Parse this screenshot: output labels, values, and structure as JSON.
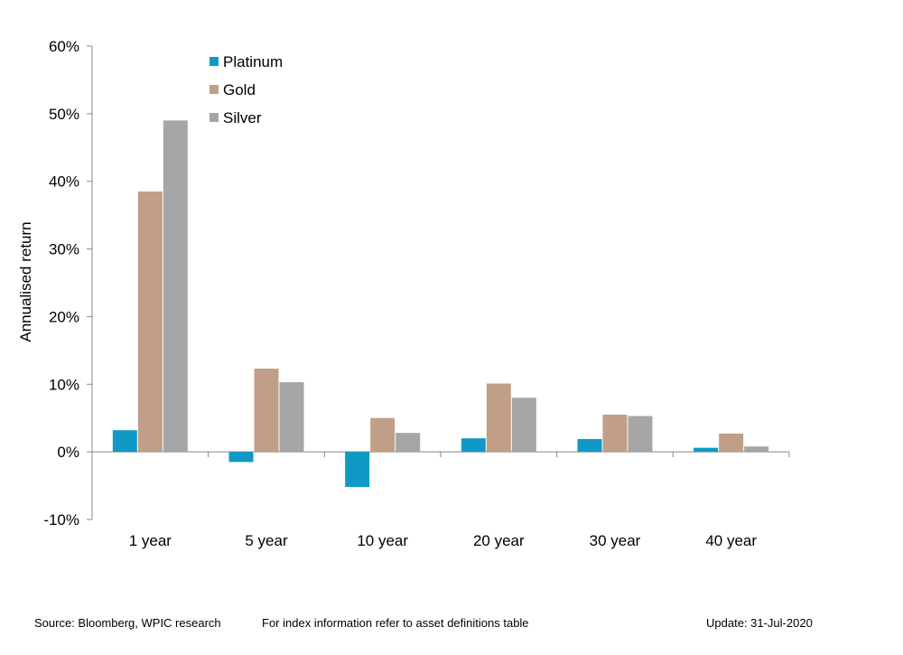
{
  "chart_data": {
    "type": "bar",
    "categories": [
      "1 year",
      "5 year",
      "10 year",
      "20 year",
      "30 year",
      "40 year"
    ],
    "series": [
      {
        "name": "Platinum",
        "color": "#0f9ac6",
        "values": [
          3.2,
          -1.5,
          -5.2,
          2.0,
          1.9,
          0.6
        ]
      },
      {
        "name": "Gold",
        "color": "#c09e88",
        "values": [
          38.5,
          12.3,
          5.0,
          10.1,
          5.5,
          2.7
        ]
      },
      {
        "name": "Silver",
        "color": "#a6a6a6",
        "values": [
          49.0,
          10.3,
          2.8,
          8.0,
          5.3,
          0.8
        ]
      }
    ],
    "ylabel": "Annualised return",
    "xlabel": "",
    "ylim": [
      -10,
      60
    ],
    "yticks": [
      -10,
      0,
      10,
      20,
      30,
      40,
      50,
      60
    ],
    "ytick_labels": [
      "-10%",
      "0%",
      "10%",
      "20%",
      "30%",
      "40%",
      "50%",
      "60%"
    ],
    "grid": false,
    "legend_position": "top-left"
  },
  "footer": {
    "source": "Source: Bloomberg, WPIC research",
    "note": "For index information refer to asset definitions table",
    "update": "Update: 31-Jul-2020"
  }
}
